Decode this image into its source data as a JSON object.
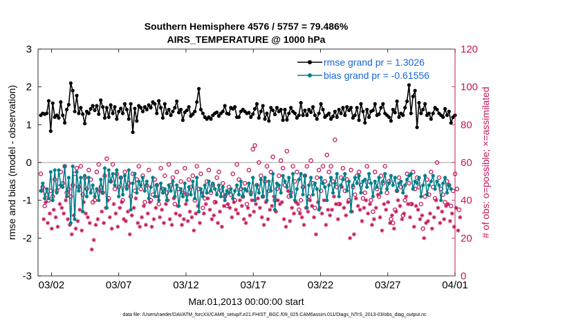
{
  "chart_data": {
    "type": "line",
    "title": "Southern Hemisphere 4576 / 5757 = 79.486%",
    "subtitle": "AIRS_TEMPERATURE @ 1000 hPa",
    "xlabel": "Mar.01,2013 00:00:00 start",
    "ylabel": "rmse and bias (model - observation)",
    "y2label": "# of obs: o=possible; ×=assimilated",
    "footer": "data file: /Users/raeder/DAI/ATM_forcXX/CAM6_setup/f.e21.FHIST_BGC.f09_025.CAM6assim.011/Diags_NTrS_2013-03/obs_diag_output.nc",
    "xlim": [
      0,
      31
    ],
    "ylim": [
      -3,
      3
    ],
    "y2lim": [
      0,
      120
    ],
    "xticks": [
      1,
      6,
      11,
      16,
      21,
      26,
      31
    ],
    "xtick_labels": [
      "03/02",
      "03/07",
      "03/12",
      "03/17",
      "03/22",
      "03/27",
      "04/01"
    ],
    "yticks": [
      -3,
      -2,
      -1,
      0,
      1,
      2,
      3
    ],
    "y2ticks": [
      0,
      20,
      40,
      60,
      80,
      100,
      120
    ],
    "zero_line": 0,
    "colors": {
      "rmse": "#000000",
      "bias": "#00808a",
      "obs": "#c2185b",
      "legend_text": "#1565d8",
      "zero_line": "#bdbdbd"
    },
    "series": [
      {
        "name": "rmse grand pr = 1.3026",
        "key": "rmse",
        "values": [
          1.25,
          1.3,
          1.28,
          1.3,
          1.63,
          0.83,
          1.57,
          1.2,
          1.25,
          1.18,
          1.6,
          1.25,
          1.05,
          1.4,
          1.53,
          2.1,
          1.9,
          1.35,
          1.77,
          1.3,
          1.45,
          1.28,
          1.03,
          1.35,
          1.3,
          1.42,
          1.5,
          1.38,
          1.5,
          1.28,
          1.65,
          1.47,
          1.18,
          1.45,
          1.2,
          1.52,
          1.3,
          1.47,
          1.15,
          1.35,
          1.43,
          1.3,
          1.55,
          1.4,
          1.15,
          1.55,
          0.8,
          1.43,
          1.1,
          1.5,
          1.45,
          1.35,
          1.47,
          1.4,
          1.52,
          1.45,
          1.6,
          1.55,
          1.3,
          1.63,
          1.45,
          1.18,
          1.55,
          1.3,
          1.4,
          1.25,
          1.35,
          1.45,
          1.62,
          1.32,
          1.4,
          1.12,
          1.33,
          1.38,
          1.47,
          1.23,
          1.28,
          1.35,
          1.6,
          1.95,
          1.4,
          1.3,
          1.2,
          1.15,
          1.2,
          1.15,
          1.25,
          1.3,
          1.33,
          1.23,
          1.3,
          1.35,
          1.5,
          1.3,
          1.28,
          1.45,
          1.42,
          1.47,
          1.2,
          1.2,
          1.35,
          1.4,
          1.35,
          1.3,
          1.32,
          1.2,
          1.28,
          1.42,
          1.55,
          1.18,
          1.35,
          1.5,
          1.15,
          1.3,
          1.1,
          1.45,
          1.38,
          1.27,
          1.45,
          1.35,
          1.4,
          1.12,
          1.4,
          1.13,
          1.3,
          1.45,
          1.35,
          1.3,
          1.18,
          1.25,
          1.58,
          1.25,
          1.38,
          1.25,
          1.4,
          1.33,
          1.47,
          1.25,
          1.15,
          1.3,
          1.55,
          1.4,
          1.2,
          1.25,
          1.3,
          1.15,
          1.22,
          1.35,
          1.2,
          1.4,
          1.3,
          1.45,
          1.25,
          1.47,
          1.38,
          1.45,
          1.18,
          1.25,
          1.45,
          1.12,
          1.55,
          1.35,
          1.05,
          1.4,
          1.2,
          1.35,
          1.38,
          1.55,
          1.25,
          1.28,
          1.45,
          1.55,
          1.3,
          1.25,
          1.2,
          1.1,
          1.4,
          1.32,
          1.62,
          1.2,
          1.3,
          1.25,
          1.45,
          1.62,
          2.05,
          1.3,
          1.75,
          1.9,
          0.93,
          1.58,
          1.3,
          1.4,
          1.55,
          1.25,
          1.3,
          1.15,
          1.3,
          1.45,
          1.4,
          1.3,
          1.25,
          1.2,
          1.42,
          1.25,
          1.35,
          1.05,
          1.2,
          1.25
        ]
      },
      {
        "name": "bias grand pr = -0.61556",
        "key": "bias",
        "values": [
          -0.75,
          -0.55,
          -0.95,
          -0.7,
          -0.95,
          -0.25,
          -1.0,
          -0.2,
          -0.8,
          -0.2,
          -0.6,
          -0.65,
          -0.1,
          -0.9,
          -0.4,
          -1.6,
          -0.1,
          -1.5,
          -0.25,
          -0.75,
          -0.4,
          -1.3,
          -0.35,
          -0.9,
          -0.4,
          -0.8,
          -0.6,
          -0.9,
          -0.7,
          -1.0,
          -0.45,
          -0.8,
          -0.15,
          -1.2,
          -0.2,
          -0.5,
          -0.3,
          -0.6,
          -0.2,
          -0.9,
          -0.4,
          -0.85,
          -0.35,
          -0.7,
          -0.2,
          -1.25,
          -0.55,
          -0.3,
          -0.8,
          -0.5,
          -0.6,
          -0.4,
          -0.75,
          -0.5,
          -0.95,
          -0.65,
          -0.4,
          -0.9,
          -0.6,
          -1.0,
          -0.55,
          -0.8,
          -0.7,
          -1.0,
          -0.6,
          -0.75,
          -0.5,
          -0.9,
          -0.6,
          -1.15,
          -0.7,
          -0.9,
          -0.55,
          -1.0,
          -0.65,
          -0.85,
          -0.5,
          -0.95,
          -0.4,
          -1.3,
          -0.7,
          -0.9,
          -0.6,
          -0.8,
          -0.5,
          -0.75,
          -0.55,
          -0.7,
          -0.85,
          -0.6,
          -0.9,
          -0.65,
          -1.0,
          -0.75,
          -0.8,
          -0.7,
          -0.95,
          -0.75,
          -0.6,
          -0.85,
          -0.5,
          -0.9,
          -0.7,
          -0.75,
          -0.55,
          -0.85,
          -0.4,
          -1.0,
          -0.6,
          -0.8,
          -0.45,
          -0.9,
          -0.4,
          -1.0,
          -0.5,
          -0.75,
          -0.3,
          -1.25,
          -0.55,
          -0.6,
          -0.8,
          -0.35,
          -0.5,
          -0.65,
          -0.4,
          -0.9,
          -0.3,
          -1.0,
          -0.7,
          -0.45,
          -0.3,
          -0.85,
          -0.35,
          -1.2,
          -0.6,
          -0.4,
          -0.85,
          -0.55,
          -0.7,
          -1.25,
          -0.4,
          -0.55,
          -0.65,
          -1.0,
          -0.6,
          -0.4,
          -0.8,
          -0.55,
          -0.3,
          -0.9,
          -0.6,
          -0.45,
          -0.3,
          -0.75,
          -0.5,
          -1.3,
          -0.6,
          -0.4,
          -0.55,
          -0.35,
          -0.8,
          -0.5,
          -0.45,
          -0.65,
          -0.3,
          -0.55,
          -0.9,
          -0.5,
          -0.65,
          -0.4,
          -0.8,
          -0.5,
          -0.3,
          -0.7,
          -0.55,
          -0.35,
          -0.6,
          -0.4,
          -0.75,
          -0.55,
          -0.5,
          -0.8,
          -0.6,
          -0.45,
          -0.35,
          -0.3,
          -0.7,
          -0.5,
          -0.55,
          -0.4,
          -0.9,
          -0.6,
          -0.35,
          -0.85,
          -0.6,
          -0.5,
          -0.35,
          -0.7,
          -0.5,
          -0.6,
          -1.0,
          -0.55,
          -0.4,
          -0.8,
          -0.6,
          -0.7
        ]
      }
    ],
    "obs_possible": [
      54,
      47,
      37,
      43,
      40,
      45,
      42,
      51,
      45,
      47,
      55,
      49,
      58,
      44,
      46,
      42,
      48,
      54,
      57,
      47,
      58,
      43,
      52,
      46,
      56,
      51,
      39,
      40,
      55,
      59,
      47,
      44,
      53,
      62,
      41,
      50,
      59,
      46,
      54,
      47,
      52,
      40,
      55,
      47,
      49,
      42,
      54,
      45,
      51,
      58,
      46,
      53,
      39,
      48,
      56,
      40,
      43,
      51,
      48,
      38,
      57,
      46,
      53,
      44,
      59,
      48,
      52,
      38,
      55,
      46,
      50,
      44,
      57,
      43,
      51,
      47,
      53,
      40,
      58,
      46,
      54,
      36,
      41,
      50,
      56,
      44,
      48,
      39,
      52,
      55,
      45,
      49,
      42,
      37,
      47,
      43,
      54,
      40,
      59,
      51,
      46,
      42,
      49,
      38,
      56,
      44,
      67,
      69,
      48,
      60,
      53,
      42,
      50,
      58,
      45,
      55,
      63,
      40,
      46,
      53,
      61,
      57,
      48,
      66,
      42,
      44,
      58,
      50,
      55,
      35,
      40,
      47,
      53,
      58,
      42,
      61,
      49,
      36,
      52,
      56,
      45,
      58,
      50,
      64,
      55,
      58,
      50,
      72,
      47,
      38,
      52,
      57,
      45,
      51,
      40,
      56,
      47,
      43,
      53,
      55,
      48,
      41,
      44,
      58,
      50,
      40,
      34,
      55,
      46,
      42,
      53,
      49,
      58,
      44,
      50,
      30,
      28,
      35,
      45,
      52,
      47,
      32,
      40,
      54,
      49,
      38,
      55,
      46,
      52,
      47,
      38,
      25,
      42,
      51,
      43,
      55,
      47,
      41,
      60,
      52,
      46,
      43,
      39,
      50,
      48,
      37,
      45,
      54,
      46,
      35
    ],
    "obs_assimilated": [
      45,
      30,
      39,
      28,
      33,
      25,
      35,
      31,
      26,
      38,
      36,
      33,
      40,
      30,
      27,
      22,
      32,
      25,
      29,
      35,
      24,
      39,
      33,
      31,
      28,
      14,
      19,
      27,
      30,
      45,
      34,
      28,
      36,
      40,
      31,
      25,
      38,
      33,
      26,
      36,
      39,
      30,
      29,
      34,
      22,
      32,
      36,
      41,
      28,
      26,
      31,
      37,
      27,
      33,
      39,
      26,
      30,
      36,
      42,
      31,
      35,
      28,
      38,
      40,
      30,
      27,
      41,
      33,
      37,
      32,
      27,
      30,
      38,
      29,
      34,
      31,
      24,
      33,
      37,
      28,
      44,
      33,
      38,
      41,
      35,
      30,
      32,
      39,
      28,
      34,
      26,
      37,
      43,
      38,
      36,
      31,
      39,
      35,
      33,
      40,
      37,
      30,
      28,
      36,
      32,
      40,
      34,
      38,
      41,
      36,
      31,
      27,
      39,
      30,
      35,
      37,
      42,
      34,
      40,
      38,
      39,
      30,
      26,
      45,
      29,
      36,
      33,
      39,
      38,
      33,
      31,
      27,
      36,
      34,
      40,
      37,
      31,
      22,
      39,
      36,
      33,
      40,
      27,
      35,
      32,
      35,
      42,
      38,
      30,
      38,
      47,
      36,
      32,
      39,
      20,
      34,
      22,
      41,
      37,
      35,
      29,
      36,
      40,
      33,
      38,
      27,
      30,
      36,
      43,
      31,
      24,
      38,
      35,
      39,
      28,
      32,
      25,
      34,
      40,
      37,
      30,
      33,
      42,
      38,
      31,
      38,
      26,
      37,
      35,
      30,
      32,
      20,
      28,
      29,
      33,
      25,
      31,
      40,
      36,
      28,
      34,
      30,
      37,
      38,
      29,
      33,
      26,
      36,
      24,
      31
    ],
    "legend": {
      "position": "top-right",
      "entries": [
        "rmse grand pr = 1.3026",
        "bias grand pr = -0.61556"
      ]
    }
  }
}
